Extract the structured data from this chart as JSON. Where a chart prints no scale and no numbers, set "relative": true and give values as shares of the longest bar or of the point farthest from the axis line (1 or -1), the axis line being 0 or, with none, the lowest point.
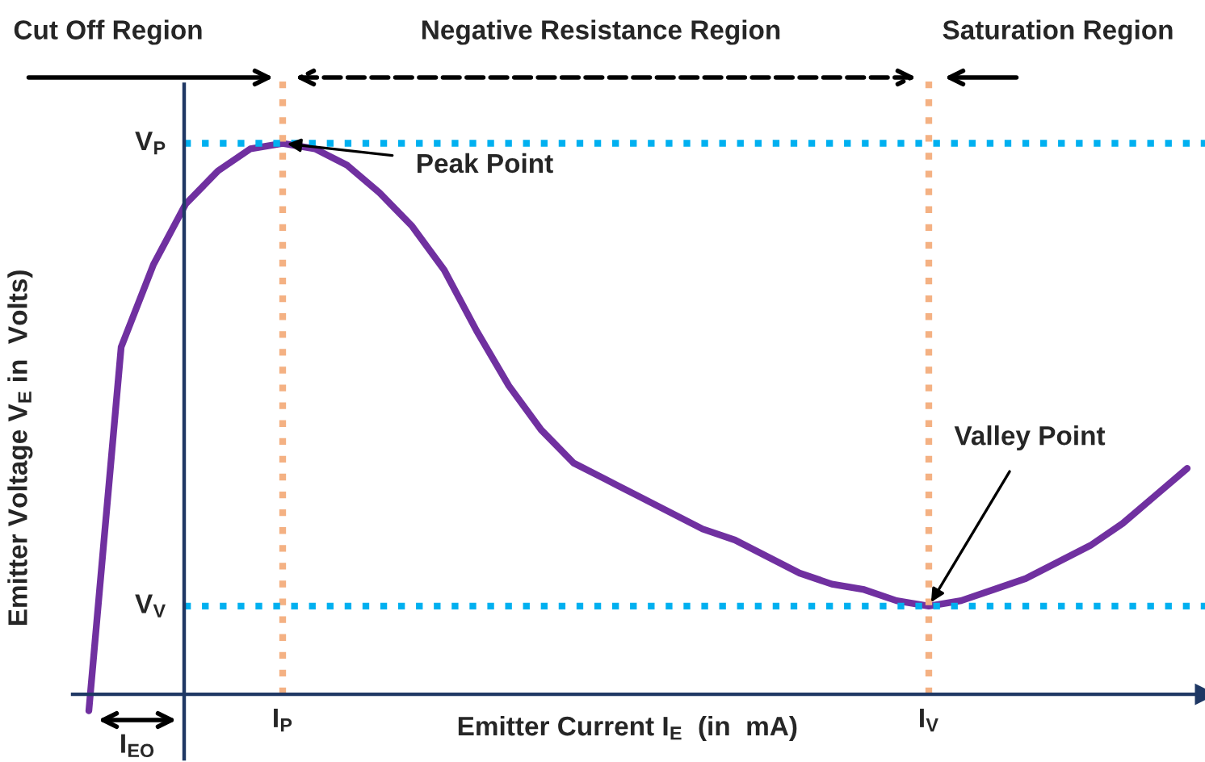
{
  "chart_data": {
    "type": "line",
    "relative": true,
    "xlabel": "Emitter Current I$_{E}$  (in  mA)",
    "ylabel": "Emitter Voltage V$_{E}$ in  Volts)",
    "categories": [
      null,
      null,
      null,
      null,
      null,
      null,
      "I$_{P}$",
      null,
      null,
      null,
      null,
      null,
      null,
      null,
      null,
      null,
      null,
      null,
      null,
      null,
      null,
      null,
      null,
      null,
      null,
      null,
      "I$_{V}$",
      null,
      null,
      null,
      null,
      null,
      null,
      null,
      null
    ],
    "series": [
      {
        "color": "#7030a0",
        "values": [
          -0.03,
          0.63,
          0.78,
          0.89,
          0.95,
          0.99,
          1.0,
          0.99,
          0.96,
          0.91,
          0.85,
          0.77,
          0.66,
          0.56,
          0.48,
          0.42,
          0.39,
          0.36,
          0.33,
          0.3,
          0.28,
          0.25,
          0.22,
          0.2,
          0.19,
          0.17,
          0.16,
          0.17,
          0.19,
          0.21,
          0.24,
          0.27,
          0.31,
          0.36,
          0.41
        ]
      }
    ],
    "ref_lines": [
      {
        "axis": "x",
        "value": "I$_{P}$",
        "color": "#f4b183",
        "line_style": "dotted"
      },
      {
        "axis": "x",
        "value": "I$_{V}$",
        "color": "#f4b183",
        "line_style": "dotted"
      },
      {
        "axis": "y",
        "value": 1.0,
        "label": "V$_{P}$",
        "color": "#00b0f0",
        "line_style": "dotted"
      },
      {
        "axis": "y",
        "value": 0.16,
        "label": "V$_{V}$",
        "color": "#00b0f0",
        "line_style": "dotted"
      }
    ],
    "annotations": [
      "Cut Off Region",
      "Negative Resistance Region",
      "Saturation Region",
      "I$_{EO}$",
      {
        "text": "Peak Point",
        "x": "I$_{P}$",
        "y": 1.0
      },
      {
        "text": "Valley Point",
        "x": "I$_{V}$",
        "y": 0.16
      }
    ],
    "grid": false,
    "legend": false,
    "marker": "none",
    "line_style": "solid"
  }
}
